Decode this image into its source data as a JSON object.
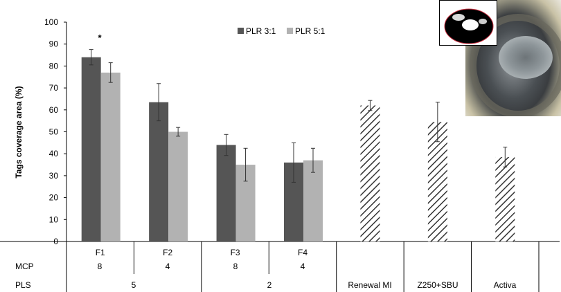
{
  "chart_data": {
    "type": "bar",
    "ylabel": "Tags coverage area (%)",
    "ylim": [
      0,
      100
    ],
    "yticks": [
      "0",
      "10",
      "20",
      "30",
      "40",
      "50",
      "60",
      "70",
      "80",
      "90",
      "100"
    ],
    "legend": {
      "placement": "top-center",
      "entries": [
        "PLR 3:1",
        "PLR 5:1"
      ]
    },
    "categories": [
      "F1",
      "F2",
      "F3",
      "F4",
      "Renewal MI",
      "Z250+SBU",
      "Activa"
    ],
    "series": [
      {
        "name": "PLR 3:1",
        "color": "#555555",
        "values": [
          84,
          63.5,
          44,
          36,
          null,
          null,
          null
        ],
        "errors": [
          3.5,
          8.5,
          4.8,
          9,
          null,
          null,
          null
        ]
      },
      {
        "name": "PLR 5:1",
        "color": "#b2b2b2",
        "values": [
          77,
          50,
          35,
          37,
          null,
          null,
          null
        ],
        "errors": [
          4.5,
          2,
          7.5,
          5.5,
          null,
          null,
          null
        ]
      },
      {
        "name": "",
        "pattern": "hatched",
        "values": [
          null,
          null,
          null,
          null,
          62,
          54.5,
          38.5
        ],
        "errors": [
          null,
          null,
          null,
          null,
          2.3,
          9,
          4.5
        ]
      }
    ],
    "annotations": [
      {
        "category": "F1",
        "text": "*"
      }
    ],
    "row_headers": [
      "MCP",
      "PLS"
    ],
    "mcp_values": [
      "8",
      "4",
      "8",
      "4"
    ],
    "pls_values": [
      "5",
      "2"
    ],
    "pls_extra": [
      "Renewal MI",
      "Z250+SBU",
      "Activa"
    ]
  }
}
